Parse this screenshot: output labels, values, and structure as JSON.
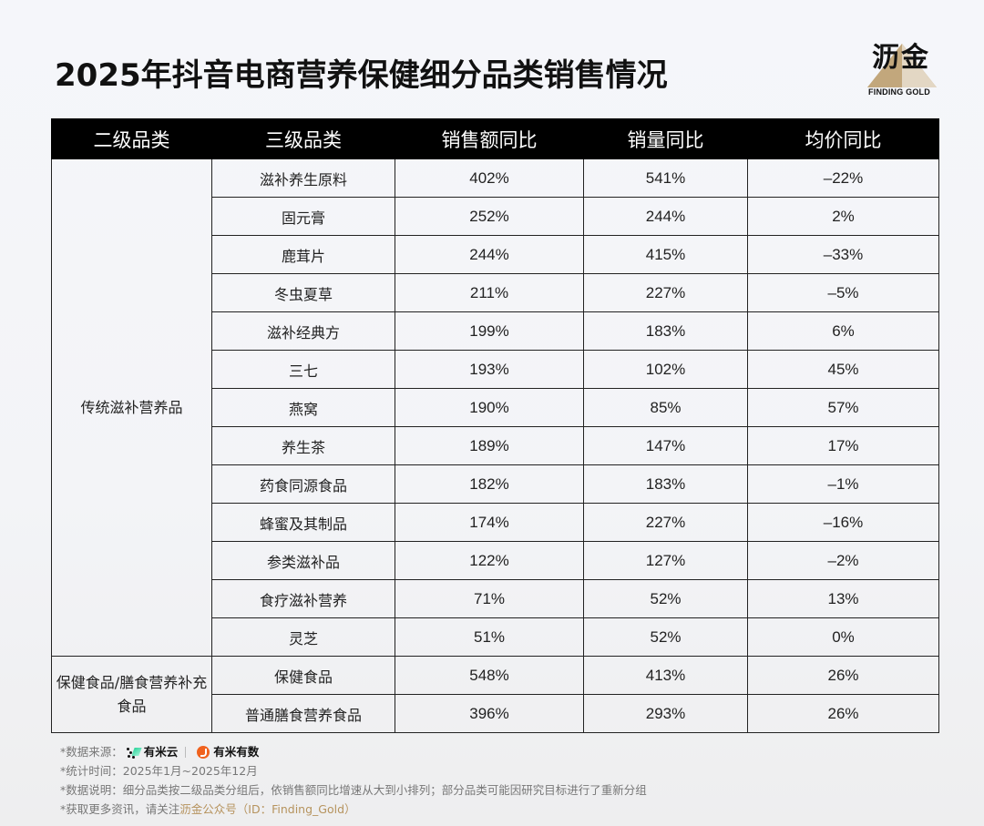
{
  "header": {
    "title": "2025年抖音电商营养保健细分品类销售情况",
    "logo": {
      "cn": "沥金",
      "en": "FINDING GOLD",
      "accent_color": "#c2a77c"
    }
  },
  "table": {
    "columns": [
      "二级品类",
      "三级品类",
      "销售额同比",
      "销量同比",
      "均价同比"
    ],
    "groups": [
      {
        "name": "传统滋补营养品",
        "rows": [
          {
            "category": "滋补养生原料",
            "sales_yoy": "402%",
            "volume_yoy": "541%",
            "price_yoy": "–22%"
          },
          {
            "category": "固元膏",
            "sales_yoy": "252%",
            "volume_yoy": "244%",
            "price_yoy": "2%"
          },
          {
            "category": "鹿茸片",
            "sales_yoy": "244%",
            "volume_yoy": "415%",
            "price_yoy": "–33%"
          },
          {
            "category": "冬虫夏草",
            "sales_yoy": "211%",
            "volume_yoy": "227%",
            "price_yoy": "–5%"
          },
          {
            "category": "滋补经典方",
            "sales_yoy": "199%",
            "volume_yoy": "183%",
            "price_yoy": "6%"
          },
          {
            "category": "三七",
            "sales_yoy": "193%",
            "volume_yoy": "102%",
            "price_yoy": "45%"
          },
          {
            "category": "燕窝",
            "sales_yoy": "190%",
            "volume_yoy": "85%",
            "price_yoy": "57%"
          },
          {
            "category": "养生茶",
            "sales_yoy": "189%",
            "volume_yoy": "147%",
            "price_yoy": "17%"
          },
          {
            "category": "药食同源食品",
            "sales_yoy": "182%",
            "volume_yoy": "183%",
            "price_yoy": "–1%"
          },
          {
            "category": "蜂蜜及其制品",
            "sales_yoy": "174%",
            "volume_yoy": "227%",
            "price_yoy": "–16%"
          },
          {
            "category": "参类滋补品",
            "sales_yoy": "122%",
            "volume_yoy": "127%",
            "price_yoy": "–2%"
          },
          {
            "category": "食疗滋补营养",
            "sales_yoy": "71%",
            "volume_yoy": "52%",
            "price_yoy": "13%"
          },
          {
            "category": "灵芝",
            "sales_yoy": "51%",
            "volume_yoy": "52%",
            "price_yoy": "0%"
          }
        ]
      },
      {
        "name": "保健食品/膳食营养补充食品",
        "rows": [
          {
            "category": "保健食品",
            "sales_yoy": "548%",
            "volume_yoy": "413%",
            "price_yoy": "26%"
          },
          {
            "category": "普通膳食营养食品",
            "sales_yoy": "396%",
            "volume_yoy": "293%",
            "price_yoy": "26%"
          }
        ]
      }
    ]
  },
  "notes": {
    "source_label": "*数据来源：",
    "source_brand_1": "有米云",
    "source_brand_2": "有米有数",
    "period": "*统计时间：2025年1月~2025年12月",
    "description": "*数据说明：细分品类按二级品类分组后，依销售额同比增速从大到小排列；部分品类可能因研究目标进行了重新分组",
    "more_info_prefix": "*获取更多资讯，请关注",
    "more_info_link": "沥金公众号（ID：Finding_Gold）",
    "link_color": "#b6935e"
  }
}
